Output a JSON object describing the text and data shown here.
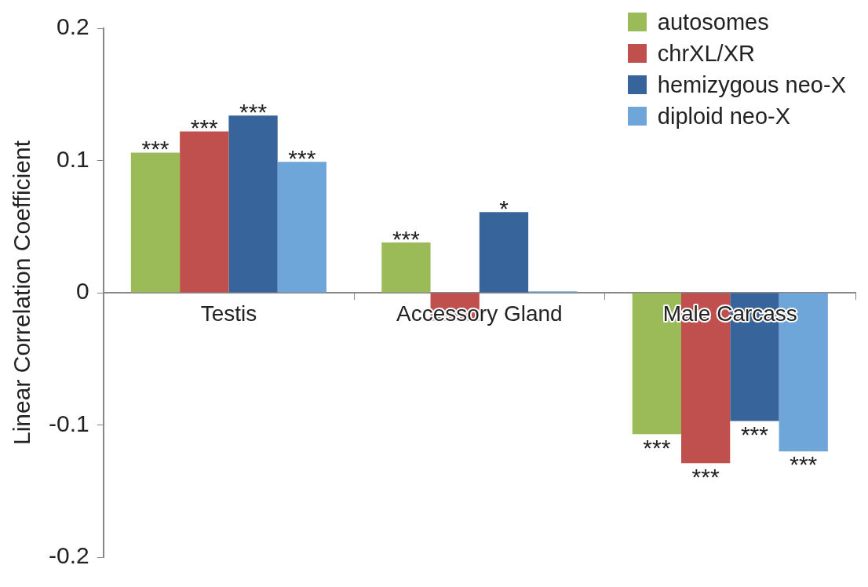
{
  "chart_data": {
    "type": "bar",
    "ylabel": "Linear Correlation Coefficient",
    "categories": [
      "Testis",
      "Accessory Gland",
      "Male Carcass"
    ],
    "series": [
      {
        "name": "autosomes",
        "color": "#9bbb59",
        "values": [
          0.106,
          0.038,
          -0.107
        ]
      },
      {
        "name": "chrXL/XR",
        "color": "#c0504d",
        "values": [
          0.122,
          -0.021,
          -0.129
        ]
      },
      {
        "name": "hemizygous neo-X",
        "color": "#37659b",
        "values": [
          0.134,
          0.061,
          -0.097
        ]
      },
      {
        "name": "diploid neo-X",
        "color": "#6ea6da",
        "values": [
          0.099,
          0.001,
          -0.12
        ]
      }
    ],
    "ylim": [
      -0.2,
      0.2
    ],
    "yticks": [
      -0.2,
      -0.1,
      0,
      0.1,
      0.2
    ],
    "grid": false,
    "legend": "top right",
    "annotations": [
      {
        "text": "***",
        "x": "Testis",
        "y": 0.106
      },
      {
        "text": "***",
        "x": "Testis",
        "y": 0.122
      },
      {
        "text": "***",
        "x": "Testis",
        "y": 0.134
      },
      {
        "text": "***",
        "x": "Testis",
        "y": 0.099
      },
      {
        "text": "***",
        "x": "Accessory Gland",
        "y": 0.038
      },
      {
        "text": "*",
        "x": "Accessory Gland",
        "y": 0.061
      },
      {
        "text": "***",
        "x": "Male Carcass",
        "y": -0.107
      },
      {
        "text": "***",
        "x": "Male Carcass",
        "y": -0.129
      },
      {
        "text": "***",
        "x": "Male Carcass",
        "y": -0.097
      },
      {
        "text": "***",
        "x": "Male Carcass",
        "y": -0.12
      }
    ]
  }
}
